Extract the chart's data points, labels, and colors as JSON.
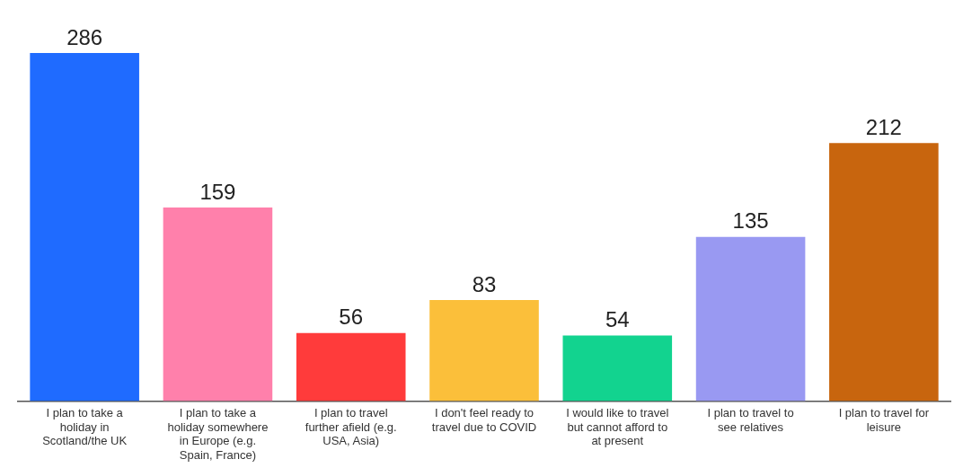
{
  "chart_data": {
    "type": "bar",
    "categories": [
      "I plan to take a holiday in Scotland/the UK",
      "I plan to take a holiday somewhere in Europe (e.g. Spain, France)",
      "I plan to travel further afield (e.g. USA, Asia)",
      "I don't feel ready to travel due to COVID",
      "I would like to travel but cannot afford to at present",
      "I plan to travel to see relatives",
      "I plan to travel for leisure"
    ],
    "values": [
      286,
      159,
      56,
      83,
      54,
      135,
      212
    ],
    "colors": [
      "#1f6bff",
      "#ff80ab",
      "#ff3b3b",
      "#fbbf3a",
      "#12d38f",
      "#9999f2",
      "#c8650e"
    ],
    "data_labels": true,
    "grid": false,
    "legend": false
  }
}
